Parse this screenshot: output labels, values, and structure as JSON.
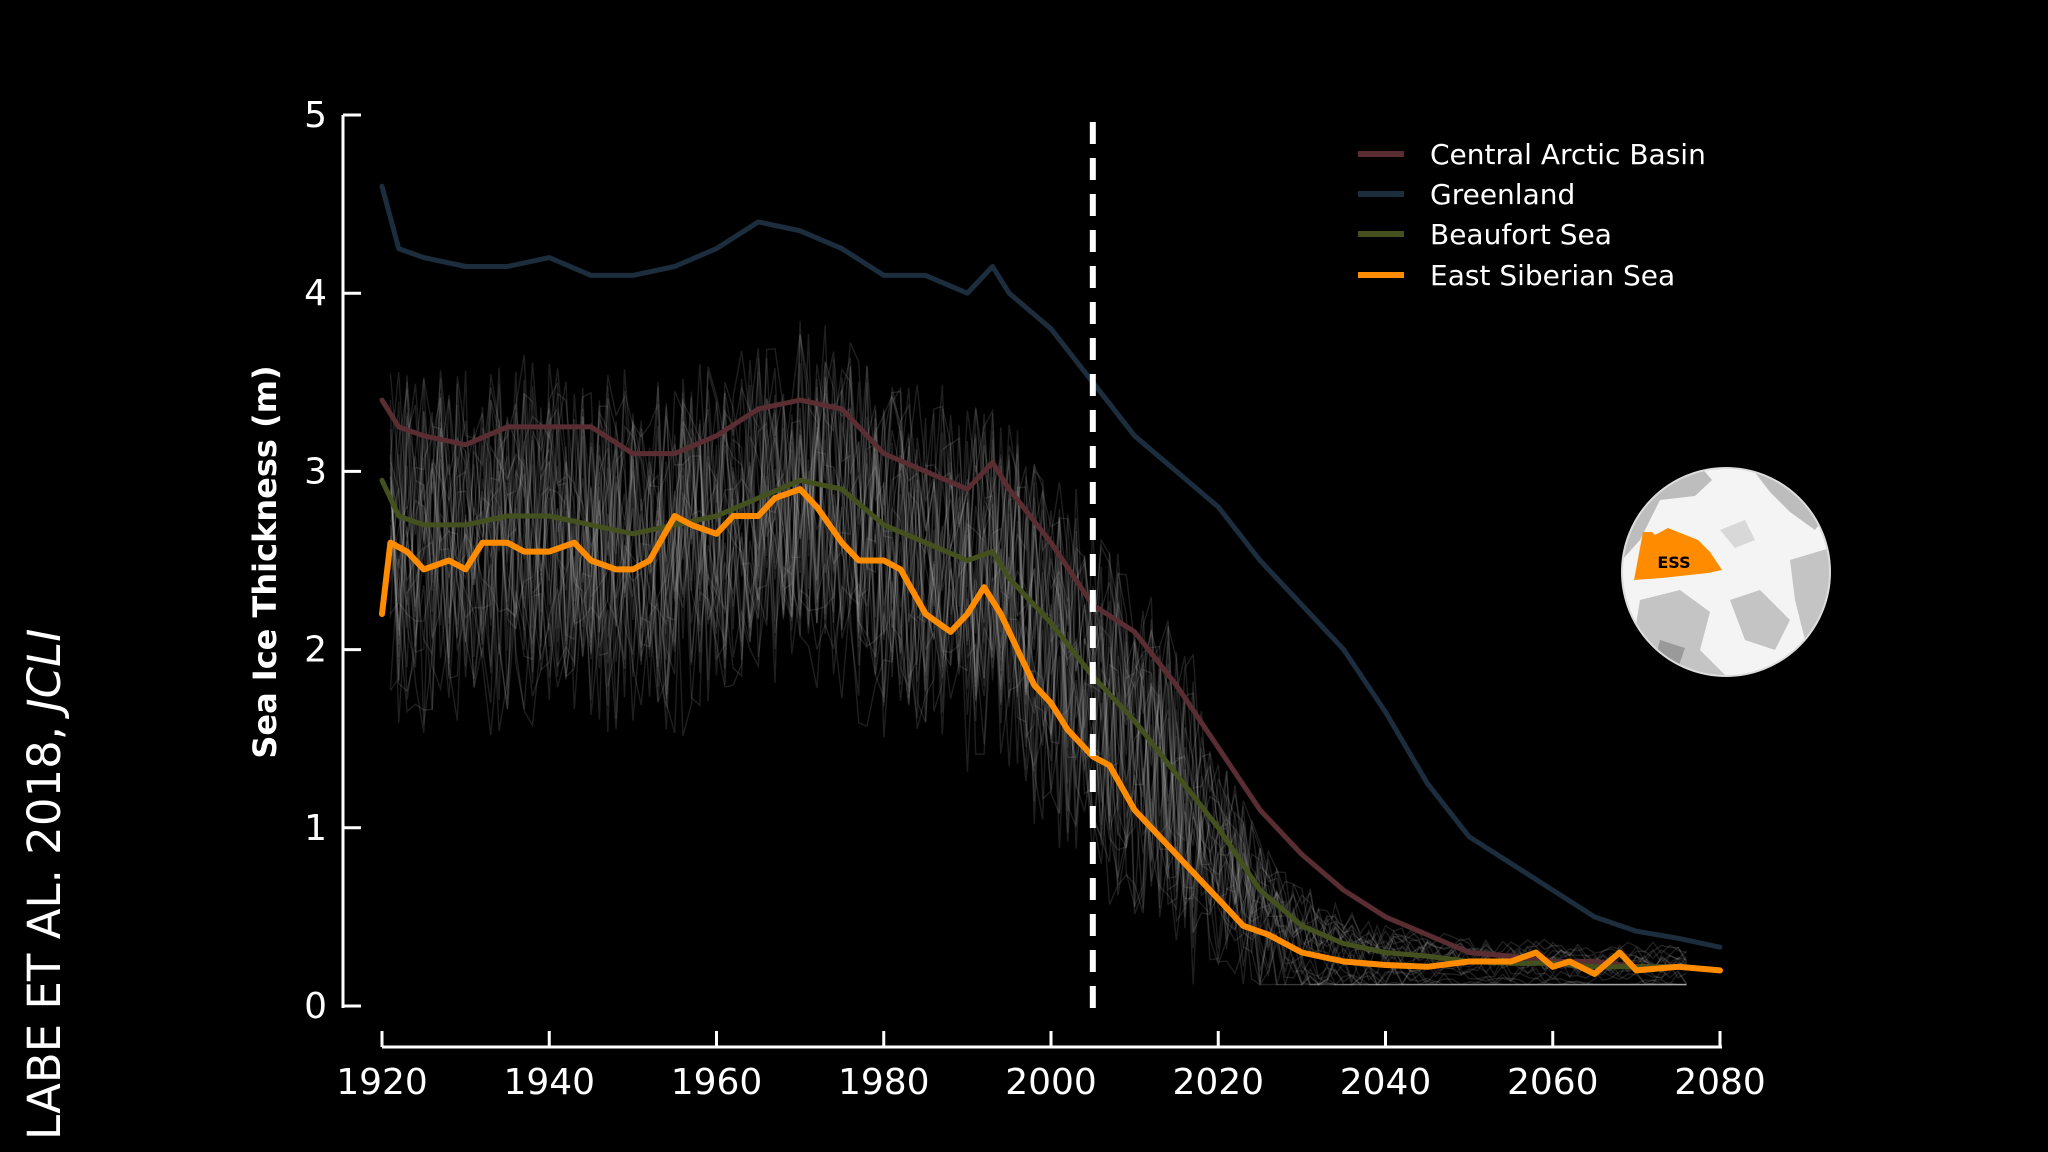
{
  "citation": {
    "text": "LABE ET AL. 2018, ",
    "journal": "JCLI"
  },
  "inset_map": {
    "label": "ESS"
  },
  "chart_data": {
    "type": "line",
    "title": "",
    "xlabel": "",
    "ylabel": "Sea Ice Thickness (m)",
    "xlim": [
      1920,
      2080
    ],
    "ylim": [
      0,
      5
    ],
    "xticks": [
      "1920",
      "1940",
      "1960",
      "1980",
      "2000",
      "2020",
      "2040",
      "2060",
      "2080"
    ],
    "yticks": [
      "0",
      "1",
      "2",
      "3",
      "4",
      "5"
    ],
    "reference_line_x": 2005,
    "legend_position": "top-right",
    "series": [
      {
        "name": "Central Arctic Basin",
        "color": "#5a2d33",
        "x": [
          1920,
          1922,
          1925,
          1930,
          1935,
          1940,
          1945,
          1950,
          1955,
          1960,
          1965,
          1970,
          1975,
          1980,
          1985,
          1990,
          1993,
          1995,
          2000,
          2005,
          2010,
          2015,
          2020,
          2025,
          2030,
          2035,
          2040,
          2045,
          2050,
          2055,
          2060,
          2065,
          2070,
          2075,
          2080
        ],
        "values": [
          3.4,
          3.25,
          3.2,
          3.15,
          3.25,
          3.25,
          3.25,
          3.1,
          3.1,
          3.2,
          3.35,
          3.4,
          3.35,
          3.1,
          3.0,
          2.9,
          3.05,
          2.9,
          2.6,
          2.25,
          2.1,
          1.8,
          1.45,
          1.1,
          0.85,
          0.65,
          0.5,
          0.4,
          0.3,
          0.28,
          0.25,
          0.25,
          0.22,
          0.22,
          0.2
        ]
      },
      {
        "name": "Greenland",
        "color": "#1c2d3e",
        "x": [
          1920,
          1922,
          1925,
          1930,
          1935,
          1940,
          1945,
          1950,
          1955,
          1960,
          1965,
          1970,
          1975,
          1980,
          1985,
          1990,
          1993,
          1995,
          2000,
          2005,
          2010,
          2015,
          2020,
          2025,
          2030,
          2035,
          2040,
          2045,
          2050,
          2055,
          2060,
          2065,
          2070,
          2075,
          2080
        ],
        "values": [
          4.6,
          4.25,
          4.2,
          4.15,
          4.15,
          4.2,
          4.1,
          4.1,
          4.15,
          4.25,
          4.4,
          4.35,
          4.25,
          4.1,
          4.1,
          4.0,
          4.15,
          4.0,
          3.8,
          3.5,
          3.2,
          3.0,
          2.8,
          2.5,
          2.25,
          2.0,
          1.65,
          1.25,
          0.95,
          0.8,
          0.65,
          0.5,
          0.42,
          0.38,
          0.33
        ]
      },
      {
        "name": "Beaufort Sea",
        "color": "#44511e",
        "x": [
          1920,
          1922,
          1925,
          1930,
          1935,
          1940,
          1945,
          1950,
          1955,
          1960,
          1965,
          1970,
          1975,
          1980,
          1985,
          1990,
          1993,
          1995,
          2000,
          2005,
          2010,
          2015,
          2020,
          2025,
          2030,
          2035,
          2040,
          2045,
          2050,
          2055,
          2060,
          2065,
          2070,
          2075,
          2080
        ],
        "values": [
          2.95,
          2.75,
          2.7,
          2.7,
          2.75,
          2.75,
          2.7,
          2.65,
          2.7,
          2.75,
          2.85,
          2.95,
          2.9,
          2.7,
          2.6,
          2.5,
          2.55,
          2.4,
          2.15,
          1.85,
          1.6,
          1.3,
          1.0,
          0.65,
          0.45,
          0.35,
          0.3,
          0.28,
          0.25,
          0.24,
          0.24,
          0.22,
          0.22,
          0.22,
          0.2
        ]
      },
      {
        "name": "East Siberian Sea",
        "color": "#ff8c00",
        "x": [
          1920,
          1921,
          1923,
          1925,
          1928,
          1930,
          1932,
          1935,
          1937,
          1940,
          1943,
          1945,
          1948,
          1950,
          1952,
          1955,
          1957,
          1960,
          1962,
          1965,
          1967,
          1970,
          1972,
          1975,
          1977,
          1980,
          1982,
          1985,
          1988,
          1990,
          1992,
          1994,
          1996,
          1998,
          2000,
          2002,
          2005,
          2007,
          2010,
          2013,
          2015,
          2018,
          2020,
          2023,
          2026,
          2030,
          2035,
          2040,
          2045,
          2050,
          2055,
          2058,
          2060,
          2062,
          2065,
          2068,
          2070,
          2075,
          2080
        ],
        "values": [
          2.2,
          2.6,
          2.55,
          2.45,
          2.5,
          2.45,
          2.6,
          2.6,
          2.55,
          2.55,
          2.6,
          2.5,
          2.45,
          2.45,
          2.5,
          2.75,
          2.7,
          2.65,
          2.75,
          2.75,
          2.85,
          2.9,
          2.8,
          2.6,
          2.5,
          2.5,
          2.45,
          2.2,
          2.1,
          2.2,
          2.35,
          2.2,
          2.0,
          1.8,
          1.7,
          1.55,
          1.4,
          1.35,
          1.1,
          0.95,
          0.85,
          0.7,
          0.6,
          0.45,
          0.4,
          0.3,
          0.25,
          0.23,
          0.22,
          0.25,
          0.25,
          0.3,
          0.22,
          0.25,
          0.18,
          0.3,
          0.2,
          0.22,
          0.2
        ]
      }
    ]
  }
}
